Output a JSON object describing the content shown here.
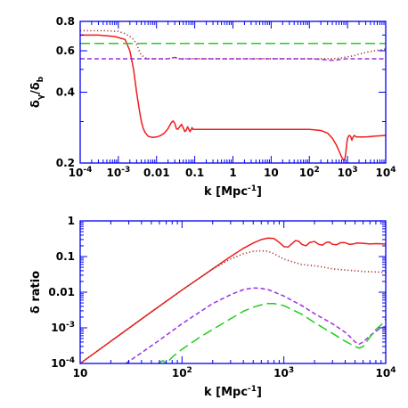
{
  "chart_data": [
    {
      "type": "line",
      "xscale": "log",
      "yscale": "log",
      "xlim": [
        0.0001,
        10000
      ],
      "ylim": [
        0.2,
        0.8
      ],
      "xlabel": "k [Mpc⁻¹]",
      "ylabel": "δγ/δb",
      "xticks": [
        {
          "value": 0.0001,
          "mant": "10",
          "exp": "-4"
        },
        {
          "value": 0.001,
          "mant": "10",
          "exp": "-3"
        },
        {
          "value": 0.01,
          "mant": "0.01",
          "exp": ""
        },
        {
          "value": 0.1,
          "mant": "0.1",
          "exp": ""
        },
        {
          "value": 1,
          "mant": "1",
          "exp": ""
        },
        {
          "value": 10,
          "mant": "10",
          "exp": ""
        },
        {
          "value": 100,
          "mant": "10",
          "exp": "2"
        },
        {
          "value": 1000,
          "mant": "10",
          "exp": "3"
        },
        {
          "value": 10000,
          "mant": "10",
          "exp": "4"
        }
      ],
      "yticks": [
        {
          "value": 0.2,
          "mant": "0.2",
          "exp": ""
        },
        {
          "value": 0.4,
          "mant": "0.4",
          "exp": ""
        },
        {
          "value": 0.6,
          "mant": "0.6",
          "exp": ""
        },
        {
          "value": 0.8,
          "mant": "0.8",
          "exp": ""
        }
      ],
      "series": [
        {
          "style": "solid",
          "color": "#ee1c1c",
          "x": [
            0.0001,
            0.0003,
            0.0008,
            0.0015,
            0.002,
            0.0025,
            0.003,
            0.0035,
            0.004,
            0.0045,
            0.005,
            0.006,
            0.007,
            0.008,
            0.01,
            0.013,
            0.016,
            0.02,
            0.024,
            0.027,
            0.03,
            0.033,
            0.036,
            0.04,
            0.045,
            0.05,
            0.055,
            0.06,
            0.065,
            0.07,
            0.075,
            0.08,
            0.085,
            0.09,
            0.1,
            0.15,
            0.3,
            1,
            10,
            100,
            200,
            300,
            400,
            500,
            600,
            700,
            800,
            850,
            900,
            950,
            1000,
            1100,
            1200,
            1300,
            1400,
            1500,
            1700,
            2000,
            3000,
            5000,
            10000
          ],
          "y": [
            0.7,
            0.7,
            0.69,
            0.67,
            0.6,
            0.5,
            0.4,
            0.34,
            0.3,
            0.28,
            0.27,
            0.26,
            0.258,
            0.257,
            0.258,
            0.262,
            0.268,
            0.28,
            0.296,
            0.302,
            0.295,
            0.28,
            0.278,
            0.285,
            0.292,
            0.282,
            0.272,
            0.276,
            0.285,
            0.278,
            0.272,
            0.277,
            0.283,
            0.278,
            0.278,
            0.278,
            0.278,
            0.278,
            0.278,
            0.278,
            0.275,
            0.268,
            0.255,
            0.24,
            0.225,
            0.212,
            0.205,
            0.208,
            0.22,
            0.24,
            0.255,
            0.262,
            0.26,
            0.25,
            0.258,
            0.262,
            0.258,
            0.258,
            0.258,
            0.26,
            0.262
          ]
        },
        {
          "style": "dotted",
          "color": "#a83030",
          "x": [
            0.0001,
            0.0005,
            0.001,
            0.0015,
            0.002,
            0.0025,
            0.003,
            0.0035,
            0.004,
            0.005,
            0.006,
            0.008,
            0.01,
            0.02,
            0.03,
            0.04,
            0.05,
            0.06,
            0.08,
            0.1,
            1,
            10,
            100,
            200,
            300,
            500,
            700,
            1000,
            1500,
            2000,
            3000,
            5000,
            10000
          ],
          "y": [
            0.73,
            0.73,
            0.725,
            0.71,
            0.69,
            0.67,
            0.64,
            0.6,
            0.575,
            0.56,
            0.555,
            0.555,
            0.555,
            0.555,
            0.562,
            0.555,
            0.552,
            0.555,
            0.555,
            0.555,
            0.555,
            0.555,
            0.555,
            0.555,
            0.555,
            0.556,
            0.56,
            0.565,
            0.572,
            0.58,
            0.59,
            0.6,
            0.61
          ]
        },
        {
          "style": "short-dash",
          "color": "#9933dd",
          "x": [
            0.0001,
            0.01,
            0.02,
            0.03,
            0.04,
            0.05,
            0.1,
            1,
            10,
            100,
            200,
            300,
            400,
            500,
            700,
            1000,
            10000
          ],
          "y": [
            0.555,
            0.555,
            0.555,
            0.562,
            0.555,
            0.555,
            0.555,
            0.555,
            0.555,
            0.555,
            0.552,
            0.548,
            0.546,
            0.548,
            0.552,
            0.555,
            0.555
          ]
        },
        {
          "style": "long-dash",
          "color": "#22cc22",
          "x": [
            0.0001,
            10000
          ],
          "y": [
            0.645,
            0.645
          ]
        }
      ]
    },
    {
      "type": "line",
      "xscale": "log",
      "yscale": "log",
      "xlim": [
        10,
        10000
      ],
      "ylim": [
        0.0001,
        1
      ],
      "xlabel": "k [Mpc⁻¹]",
      "ylabel": "δ ratio",
      "xticks": [
        {
          "value": 10,
          "mant": "10",
          "exp": ""
        },
        {
          "value": 100,
          "mant": "10",
          "exp": "2"
        },
        {
          "value": 1000,
          "mant": "10",
          "exp": "3"
        },
        {
          "value": 10000,
          "mant": "10",
          "exp": "4"
        }
      ],
      "yticks": [
        {
          "value": 0.0001,
          "mant": "10",
          "exp": "-4"
        },
        {
          "value": 0.001,
          "mant": "10",
          "exp": "-3"
        },
        {
          "value": 0.01,
          "mant": "0.01",
          "exp": ""
        },
        {
          "value": 0.1,
          "mant": "0.1",
          "exp": ""
        },
        {
          "value": 1,
          "mant": "1",
          "exp": ""
        }
      ],
      "series": [
        {
          "style": "solid",
          "color": "#ee1c1c",
          "x": [
            10,
            20,
            50,
            100,
            200,
            300,
            400,
            500,
            600,
            700,
            800,
            900,
            1000,
            1100,
            1200,
            1300,
            1400,
            1500,
            1650,
            1800,
            2000,
            2200,
            2400,
            2600,
            2800,
            3000,
            3300,
            3600,
            4000,
            4400,
            4800,
            5200,
            6000,
            7000,
            8000,
            10000
          ],
          "y": [
            0.0001,
            0.00042,
            0.0028,
            0.0115,
            0.045,
            0.1,
            0.17,
            0.24,
            0.3,
            0.33,
            0.32,
            0.25,
            0.19,
            0.185,
            0.23,
            0.28,
            0.27,
            0.22,
            0.2,
            0.25,
            0.265,
            0.22,
            0.21,
            0.25,
            0.255,
            0.22,
            0.215,
            0.245,
            0.245,
            0.22,
            0.225,
            0.24,
            0.235,
            0.225,
            0.23,
            0.225
          ]
        },
        {
          "style": "dotted",
          "color": "#a83030",
          "x": [
            10,
            20,
            50,
            100,
            200,
            300,
            400,
            500,
            600,
            700,
            800,
            900,
            1000,
            1200,
            1500,
            2000,
            2500,
            3000,
            4000,
            5000,
            6000,
            8000,
            10000
          ],
          "y": [
            0.0001,
            0.00042,
            0.0028,
            0.0115,
            0.045,
            0.085,
            0.12,
            0.14,
            0.145,
            0.14,
            0.12,
            0.1,
            0.085,
            0.072,
            0.06,
            0.055,
            0.05,
            0.045,
            0.042,
            0.04,
            0.038,
            0.037,
            0.036
          ]
        },
        {
          "style": "short-dash",
          "color": "#9933dd",
          "x": [
            28,
            40,
            60,
            100,
            150,
            200,
            300,
            400,
            500,
            600,
            700,
            800,
            1000,
            1500,
            2000,
            3000,
            4000,
            4500,
            5000,
            5500,
            6000,
            7000,
            8000,
            9000,
            10000
          ],
          "y": [
            0.0001,
            0.0002,
            0.00045,
            0.0013,
            0.0028,
            0.0048,
            0.0085,
            0.0118,
            0.0132,
            0.0128,
            0.0118,
            0.0102,
            0.0078,
            0.0042,
            0.0025,
            0.0013,
            0.00075,
            0.00055,
            0.0004,
            0.00035,
            0.0004,
            0.0006,
            0.0008,
            0.001,
            0.0011
          ]
        },
        {
          "style": "long-dash",
          "color": "#22cc22",
          "x": [
            58,
            65,
            70,
            80,
            100,
            150,
            200,
            300,
            400,
            500,
            600,
            700,
            800,
            1000,
            1500,
            2000,
            3000,
            4000,
            5000,
            5500,
            6000,
            7000,
            8000,
            9000,
            10000
          ],
          "y": [
            0.0001,
            0.00012,
            0.0001,
            0.00015,
            0.00025,
            0.00055,
            0.0009,
            0.0018,
            0.0029,
            0.0038,
            0.0044,
            0.0048,
            0.0048,
            0.0042,
            0.0024,
            0.0014,
            0.0007,
            0.00042,
            0.0003,
            0.00027,
            0.0003,
            0.00055,
            0.0009,
            0.0012,
            0.0018
          ]
        }
      ]
    }
  ]
}
